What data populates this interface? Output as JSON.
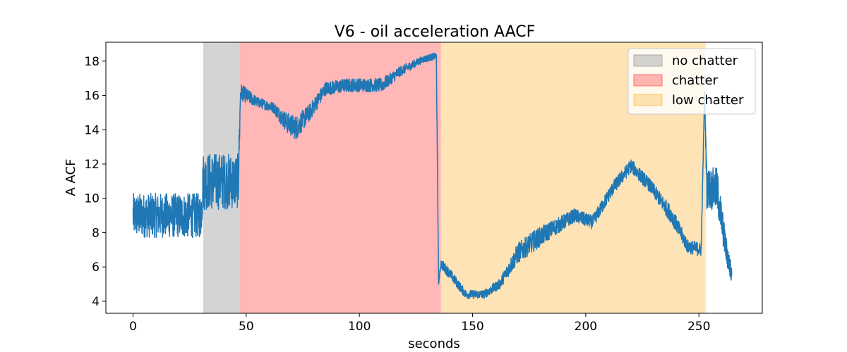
{
  "chart_data": {
    "type": "line",
    "title": "V6 - oil acceleration AACF",
    "xlabel": "seconds",
    "ylabel": "A ACF",
    "xlim": [
      -12,
      278
    ],
    "ylim": [
      3.3,
      19.1
    ],
    "xticks": [
      0,
      50,
      100,
      150,
      200,
      250
    ],
    "yticks": [
      4,
      6,
      8,
      10,
      12,
      14,
      16,
      18
    ],
    "grid": false,
    "legend_position": "top-right",
    "regions": [
      {
        "name": "no chatter",
        "x_start": 31,
        "x_end": 47,
        "color": "#a9a9a9"
      },
      {
        "name": "chatter",
        "x_start": 47,
        "x_end": 136,
        "color": "#ff6f6f"
      },
      {
        "name": "low chatter",
        "x_start": 136,
        "x_end": 253,
        "color": "#fcc86e"
      }
    ],
    "series": [
      {
        "color": "#1f77b4",
        "anchors": [
          {
            "x": 0,
            "y": 9.0,
            "noise": 1.3
          },
          {
            "x": 30,
            "y": 9.0,
            "noise": 1.3
          },
          {
            "x": 31,
            "y": 11.0,
            "noise": 1.7
          },
          {
            "x": 46.5,
            "y": 11.0,
            "noise": 1.6
          },
          {
            "x": 47.5,
            "y": 16.2,
            "noise": 0.5
          },
          {
            "x": 55,
            "y": 15.6,
            "noise": 0.3
          },
          {
            "x": 62,
            "y": 15.3,
            "noise": 0.3
          },
          {
            "x": 68,
            "y": 14.4,
            "noise": 0.6
          },
          {
            "x": 72,
            "y": 14.1,
            "noise": 0.7
          },
          {
            "x": 78,
            "y": 15.0,
            "noise": 0.5
          },
          {
            "x": 85,
            "y": 16.4,
            "noise": 0.4
          },
          {
            "x": 95,
            "y": 16.6,
            "noise": 0.4
          },
          {
            "x": 110,
            "y": 16.6,
            "noise": 0.4
          },
          {
            "x": 118,
            "y": 17.4,
            "noise": 0.3
          },
          {
            "x": 128,
            "y": 18.1,
            "noise": 0.2
          },
          {
            "x": 134,
            "y": 18.3,
            "noise": 0.2
          },
          {
            "x": 135,
            "y": 5.0,
            "noise": 0.0
          },
          {
            "x": 136,
            "y": 6.2,
            "noise": 0.3
          },
          {
            "x": 140,
            "y": 5.6,
            "noise": 0.3
          },
          {
            "x": 147,
            "y": 4.4,
            "noise": 0.25
          },
          {
            "x": 155,
            "y": 4.4,
            "noise": 0.25
          },
          {
            "x": 162,
            "y": 5.0,
            "noise": 0.3
          },
          {
            "x": 170,
            "y": 6.8,
            "noise": 0.6
          },
          {
            "x": 178,
            "y": 7.6,
            "noise": 0.6
          },
          {
            "x": 185,
            "y": 8.2,
            "noise": 0.5
          },
          {
            "x": 195,
            "y": 9.0,
            "noise": 0.4
          },
          {
            "x": 203,
            "y": 8.6,
            "noise": 0.4
          },
          {
            "x": 212,
            "y": 10.6,
            "noise": 0.4
          },
          {
            "x": 220,
            "y": 11.9,
            "noise": 0.4
          },
          {
            "x": 228,
            "y": 10.8,
            "noise": 0.4
          },
          {
            "x": 238,
            "y": 9.0,
            "noise": 0.5
          },
          {
            "x": 245,
            "y": 7.2,
            "noise": 0.4
          },
          {
            "x": 251,
            "y": 7.0,
            "noise": 0.4
          },
          {
            "x": 252.5,
            "y": 16.2,
            "noise": 0.0
          },
          {
            "x": 253.5,
            "y": 10.6,
            "noise": 1.2
          },
          {
            "x": 258,
            "y": 10.5,
            "noise": 1.3
          },
          {
            "x": 262,
            "y": 7.0,
            "noise": 0.8
          },
          {
            "x": 264.5,
            "y": 5.5,
            "noise": 0.6
          }
        ]
      }
    ]
  }
}
